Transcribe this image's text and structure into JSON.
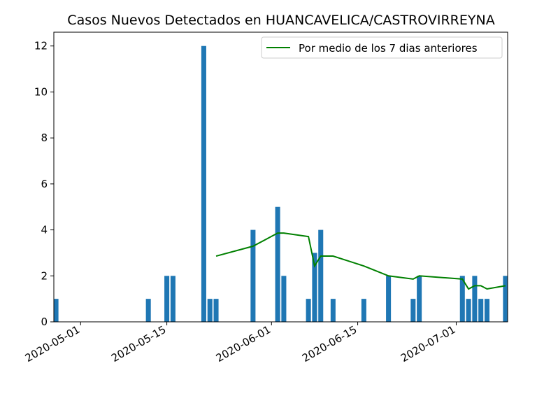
{
  "chart_data": {
    "type": "bar",
    "title": "Casos Nuevos Detectados en HUANCAVELICA/CASTROVIRREYNA",
    "xlabel": "",
    "ylabel": "",
    "x_ticks": [
      "2020-05-01",
      "2020-05-15",
      "2020-06-01",
      "2020-06-15",
      "2020-07-01"
    ],
    "y_ticks": [
      0,
      2,
      4,
      6,
      8,
      10,
      12
    ],
    "xlim": [
      "2020-04-27",
      "2020-07-09"
    ],
    "ylim": [
      0,
      12.6
    ],
    "grid": false,
    "legend_position": "top-right",
    "colors": {
      "bars": "#1f77b4",
      "line": "#008000"
    },
    "bars": [
      {
        "date": "2020-04-27",
        "value": 1
      },
      {
        "date": "2020-05-12",
        "value": 1
      },
      {
        "date": "2020-05-15",
        "value": 2
      },
      {
        "date": "2020-05-16",
        "value": 2
      },
      {
        "date": "2020-05-21",
        "value": 12
      },
      {
        "date": "2020-05-22",
        "value": 1
      },
      {
        "date": "2020-05-23",
        "value": 1
      },
      {
        "date": "2020-05-29",
        "value": 4
      },
      {
        "date": "2020-06-02",
        "value": 5
      },
      {
        "date": "2020-06-03",
        "value": 2
      },
      {
        "date": "2020-06-07",
        "value": 1
      },
      {
        "date": "2020-06-08",
        "value": 3
      },
      {
        "date": "2020-06-09",
        "value": 4
      },
      {
        "date": "2020-06-11",
        "value": 1
      },
      {
        "date": "2020-06-16",
        "value": 1
      },
      {
        "date": "2020-06-20",
        "value": 2
      },
      {
        "date": "2020-06-24",
        "value": 1
      },
      {
        "date": "2020-06-25",
        "value": 2
      },
      {
        "date": "2020-07-02",
        "value": 2
      },
      {
        "date": "2020-07-03",
        "value": 1
      },
      {
        "date": "2020-07-04",
        "value": 2
      },
      {
        "date": "2020-07-05",
        "value": 1
      },
      {
        "date": "2020-07-06",
        "value": 1
      },
      {
        "date": "2020-07-09",
        "value": 2
      }
    ],
    "series": [
      {
        "name": "Por medio de los 7 dias anteriores",
        "points": [
          {
            "date": "2020-05-23",
            "value": 2.86
          },
          {
            "date": "2020-05-29",
            "value": 3.29
          },
          {
            "date": "2020-06-02",
            "value": 3.86
          },
          {
            "date": "2020-06-03",
            "value": 3.86
          },
          {
            "date": "2020-06-07",
            "value": 3.71
          },
          {
            "date": "2020-06-08",
            "value": 2.43
          },
          {
            "date": "2020-06-09",
            "value": 2.86
          },
          {
            "date": "2020-06-11",
            "value": 2.86
          },
          {
            "date": "2020-06-16",
            "value": 2.43
          },
          {
            "date": "2020-06-20",
            "value": 2.0
          },
          {
            "date": "2020-06-24",
            "value": 1.86
          },
          {
            "date": "2020-06-25",
            "value": 2.0
          },
          {
            "date": "2020-07-02",
            "value": 1.86
          },
          {
            "date": "2020-07-03",
            "value": 1.43
          },
          {
            "date": "2020-07-04",
            "value": 1.57
          },
          {
            "date": "2020-07-05",
            "value": 1.57
          },
          {
            "date": "2020-07-06",
            "value": 1.43
          },
          {
            "date": "2020-07-09",
            "value": 1.57
          }
        ]
      }
    ]
  }
}
